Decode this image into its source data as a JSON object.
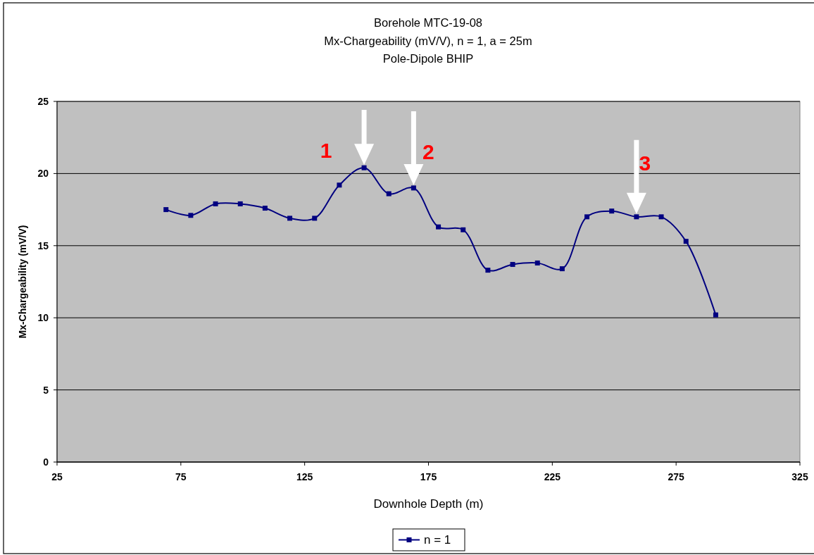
{
  "chart_data": {
    "type": "line",
    "title": "Borehole MTC-19-08",
    "subtitle": "Mx-Chargeability (mV/V), n = 1, a = 25m\nPole-Dipole BHIP",
    "xlabel": "Downhole Depth (m)",
    "ylabel": "Mx-Chargeability (mV/V)",
    "x": [
      69,
      79,
      89,
      99,
      109,
      119,
      129,
      139,
      149,
      159,
      169,
      179,
      189,
      199,
      209,
      219,
      229,
      239,
      249,
      259,
      269,
      279,
      291
    ],
    "series": [
      {
        "name": "n = 1",
        "color": "#000080",
        "values": [
          17.5,
          17.1,
          17.9,
          17.9,
          17.6,
          16.9,
          16.9,
          19.2,
          20.4,
          18.6,
          19.0,
          16.3,
          16.1,
          13.3,
          13.7,
          13.8,
          13.4,
          17.0,
          17.4,
          17.0,
          17.0,
          15.3,
          10.2
        ]
      }
    ],
    "xlim": [
      25,
      325
    ],
    "xticks": [
      25,
      75,
      125,
      175,
      225,
      275,
      325
    ],
    "ylim": [
      0,
      25
    ],
    "yticks": [
      0,
      5,
      10,
      15,
      20,
      25
    ],
    "grid": "y",
    "legend": "bottom",
    "marker": "square",
    "line_style": "solid",
    "annotations": [
      {
        "text": "1",
        "x": 149,
        "y": 20.4
      },
      {
        "text": "2",
        "x": 169,
        "y": 19.0
      },
      {
        "text": "3",
        "x": 259,
        "y": 17.0
      }
    ]
  }
}
